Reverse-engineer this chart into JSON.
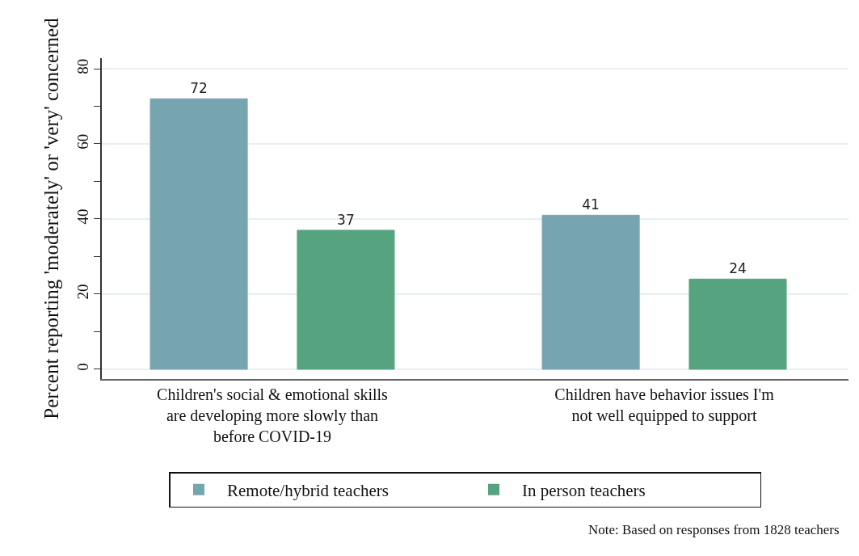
{
  "chart_data": {
    "type": "bar",
    "ylabel": "Percent reporting 'moderately' or 'very' concerned",
    "categories": [
      "Children's social & emotional skills are developing more slowly than before COVID-19",
      "Children have behavior issues I'm not well equipped to support"
    ],
    "series": [
      {
        "name": "Remote/hybrid teachers",
        "color": "#76a5af",
        "values": [
          72,
          41
        ]
      },
      {
        "name": "In person teachers",
        "color": "#55a47f",
        "values": [
          37,
          24
        ]
      }
    ],
    "ylim": [
      -2.6,
      82.8
    ],
    "yticks": [
      0,
      {
        "value": 10,
        "label": null
      },
      20,
      {
        "value": 30,
        "label": null
      },
      40,
      {
        "value": 50,
        "label": null
      },
      60,
      {
        "value": 70,
        "label": null
      },
      80
    ],
    "data_labels": true,
    "grid": "y",
    "legend": "bottom",
    "annotations": [
      "Note: Based on responses from 1828 teachers"
    ]
  }
}
